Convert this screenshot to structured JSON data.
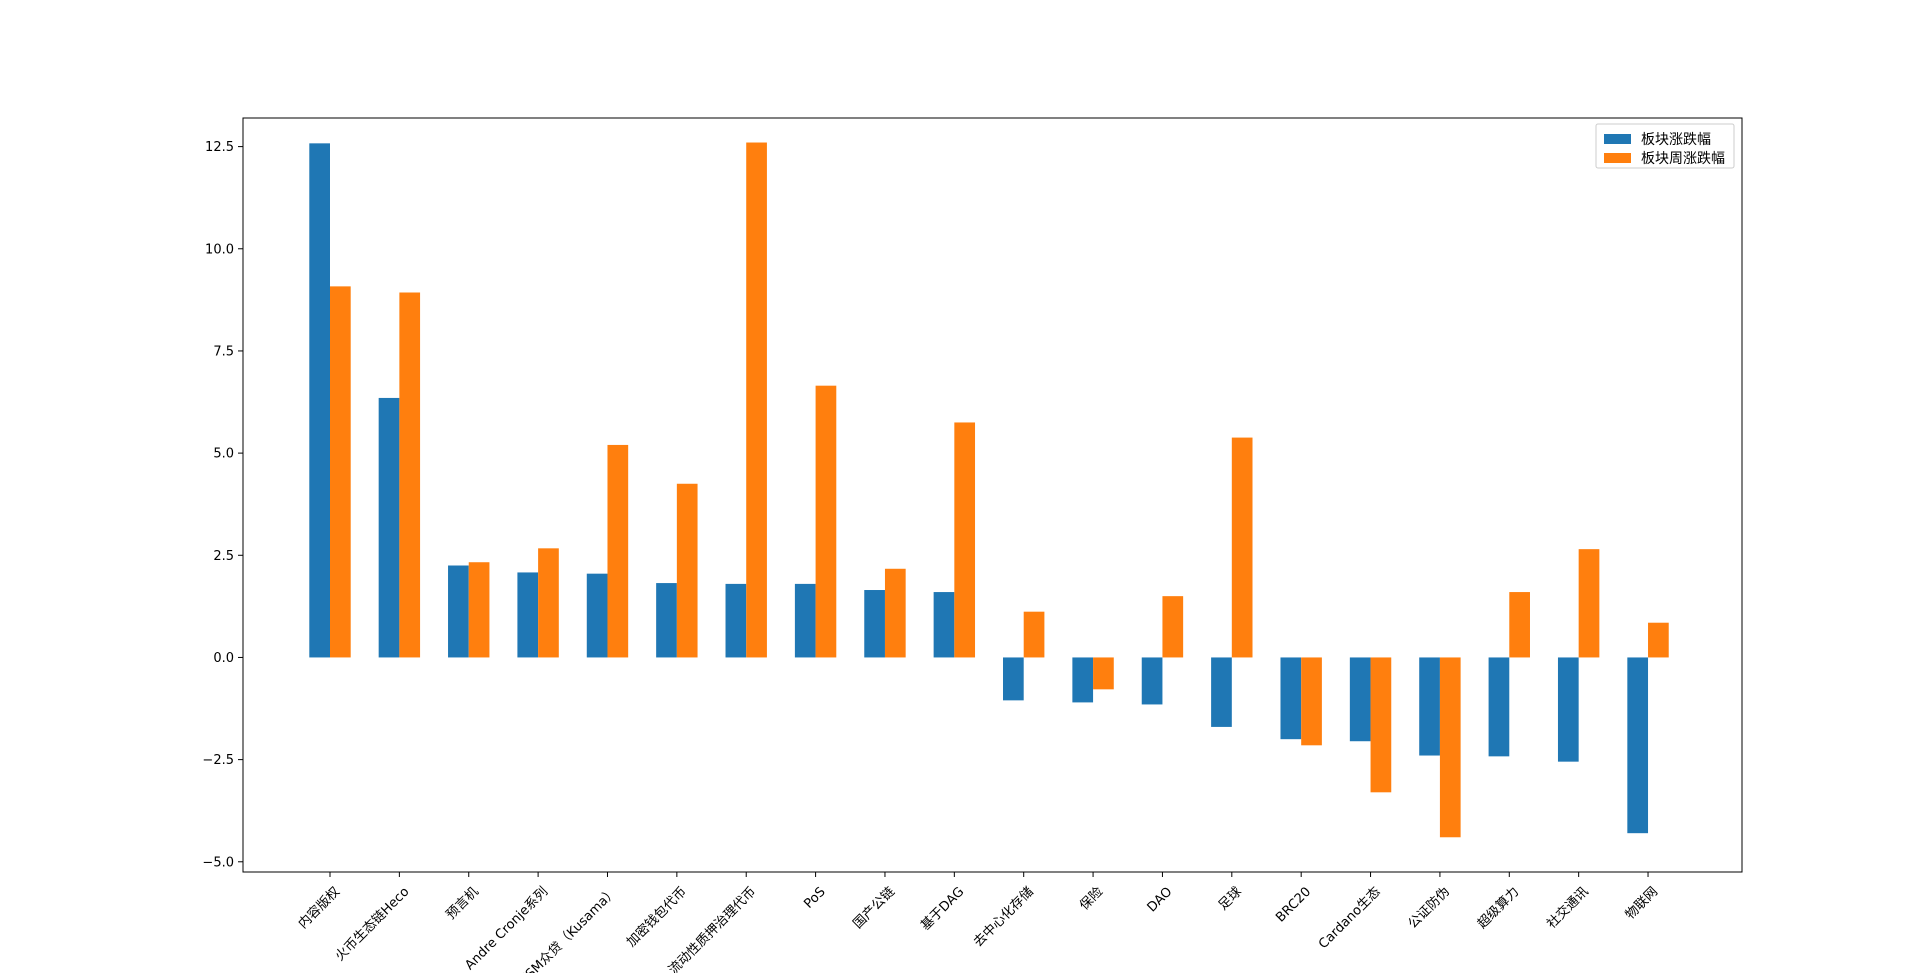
{
  "chart_data": {
    "type": "bar",
    "categories": [
      "内容版权",
      "火币生态链Heco",
      "预言机",
      "Andre Cronje系列",
      "KSM众贷（Kusama）",
      "加密钱包代币",
      "流动性质押治理代币",
      "PoS",
      "国产公链",
      "基于DAG",
      "去中心化存储",
      "保险",
      "DAO",
      "足球",
      "BRC20",
      "Cardano生态",
      "公证防伪",
      "超级算力",
      "社交通讯",
      "物联网"
    ],
    "series": [
      {
        "name": "板块涨跌幅",
        "color": "#1f77b4",
        "values": [
          12.58,
          6.35,
          2.25,
          2.08,
          2.05,
          1.82,
          1.8,
          1.8,
          1.65,
          1.6,
          -1.05,
          -1.1,
          -1.15,
          -1.7,
          -2.0,
          -2.05,
          -2.4,
          -2.42,
          -2.55,
          -4.3
        ]
      },
      {
        "name": "板块周涨跌幅",
        "color": "#ff7f0e",
        "values": [
          9.08,
          8.93,
          2.33,
          2.67,
          5.2,
          4.25,
          12.6,
          6.65,
          2.17,
          5.75,
          1.12,
          -0.78,
          1.5,
          5.38,
          -2.15,
          -3.3,
          -4.4,
          1.6,
          2.65,
          0.85
        ]
      }
    ],
    "yticks": [
      "−5.0",
      "−2.5",
      "0.0",
      "2.5",
      "5.0",
      "7.5",
      "10.0",
      "12.5"
    ],
    "ytick_values": [
      -5.0,
      -2.5,
      0.0,
      2.5,
      5.0,
      7.5,
      10.0,
      12.5
    ],
    "ylim": [
      -5.25,
      13.2
    ],
    "title": "",
    "xlabel": "",
    "ylabel": "",
    "legend_position": "top-right",
    "grid": false
  }
}
